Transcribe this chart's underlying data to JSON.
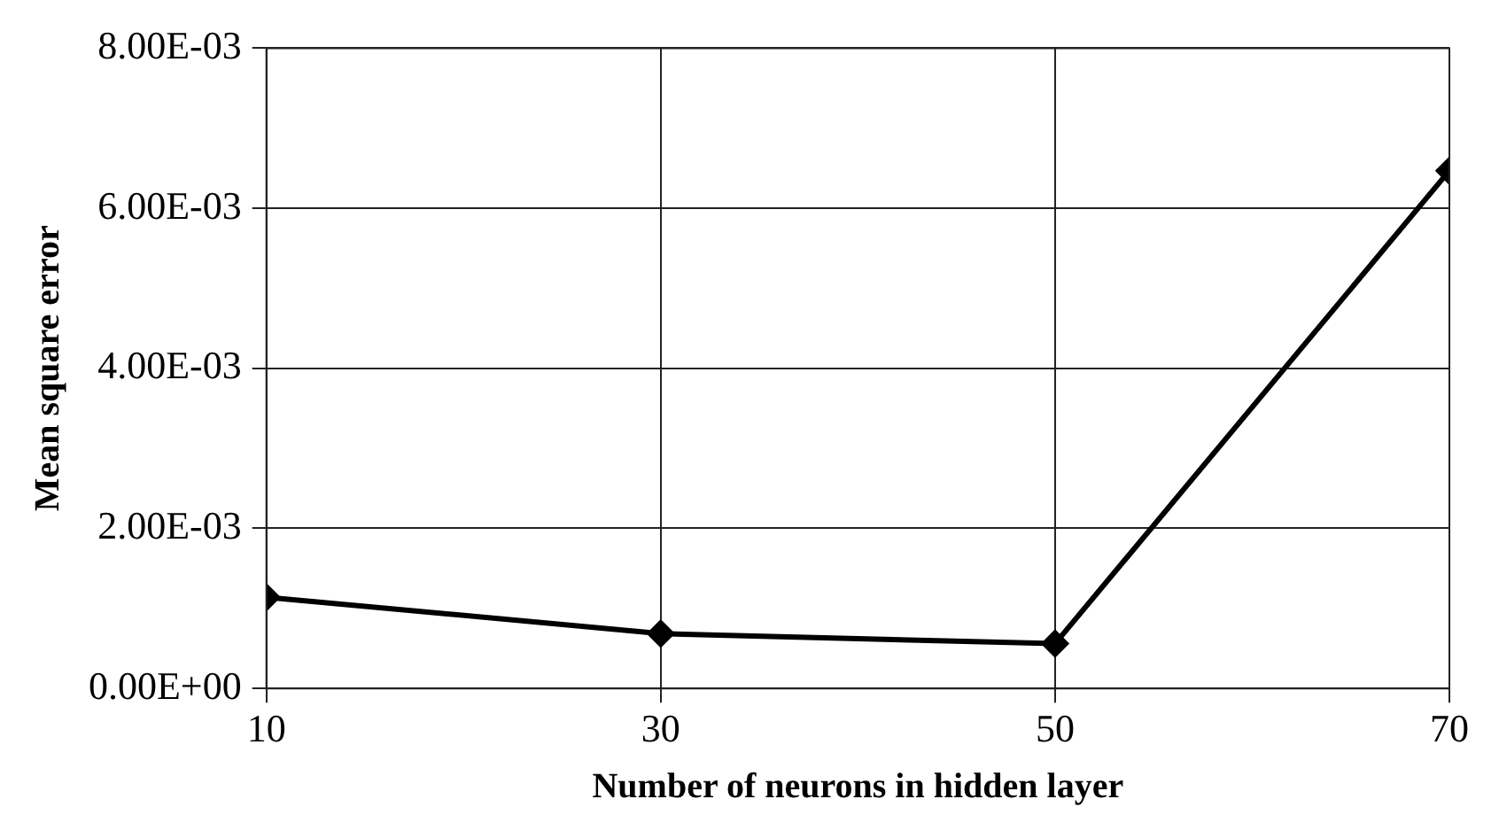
{
  "chart_data": {
    "type": "line",
    "xlabel": "Number of neurons in hidden layer",
    "ylabel": "Mean square error",
    "x": [
      10,
      30,
      50,
      70
    ],
    "series": [
      {
        "color": "#000000",
        "values": [
          0.00114,
          0.000685,
          0.00056,
          0.00647
        ]
      }
    ],
    "xlim": [
      10,
      70
    ],
    "xticks": [
      10,
      30,
      50,
      70
    ],
    "ylim": [
      0,
      0.008
    ],
    "yticks": [
      {
        "value": 0,
        "label": "0.00E+00"
      },
      {
        "value": 0.002,
        "label": "2.00E-03"
      },
      {
        "value": 0.004,
        "label": "4.00E-03"
      },
      {
        "value": 0.006,
        "label": "6.00E-03"
      },
      {
        "value": 0.008,
        "label": "8.00E-03"
      }
    ],
    "grid": true,
    "legend": false,
    "marker": "diamond",
    "line_style": "solid"
  }
}
